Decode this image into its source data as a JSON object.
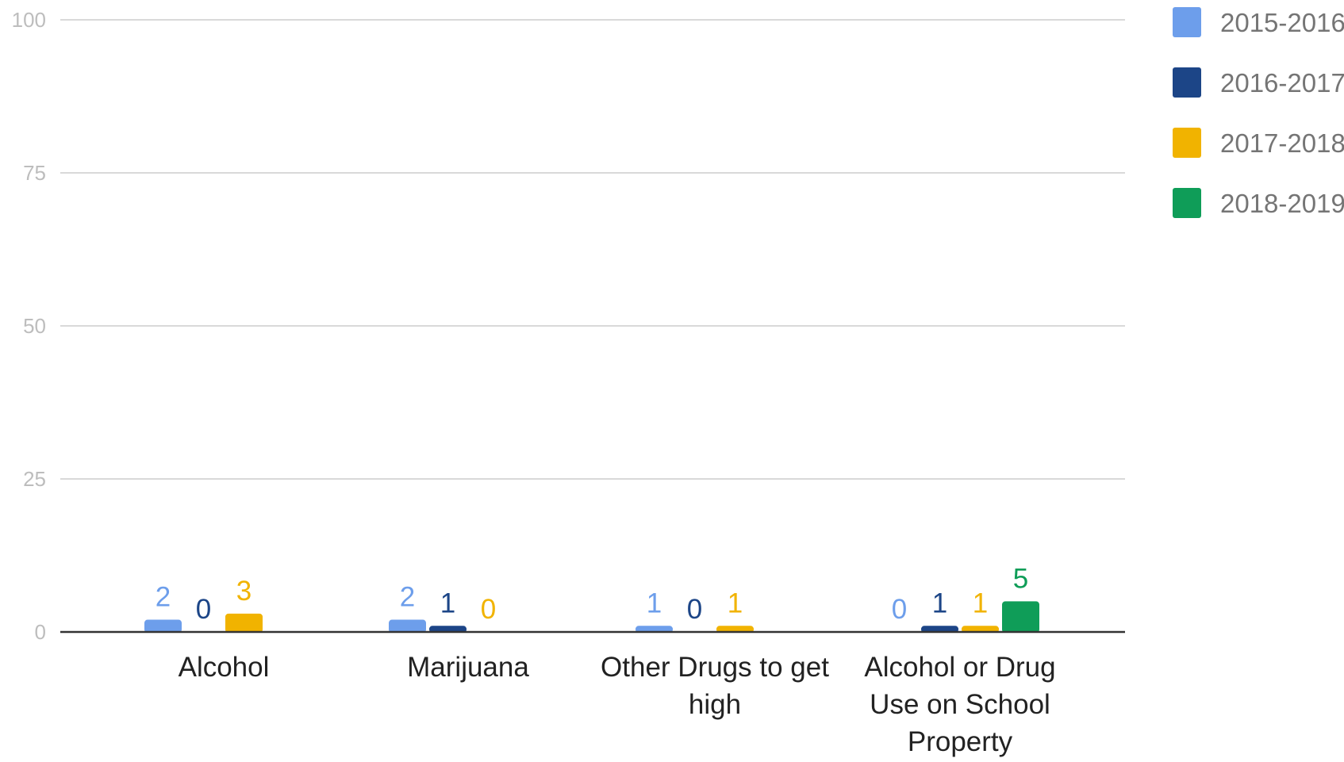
{
  "chart_data": {
    "type": "bar",
    "categories": [
      [
        "Alcohol"
      ],
      [
        "Marijuana"
      ],
      [
        "Other Drugs to get",
        "high"
      ],
      [
        "Alcohol or Drug",
        "Use on School",
        "Property"
      ]
    ],
    "series": [
      {
        "name": "2015-2016",
        "color": "#6d9eeb",
        "values": [
          2,
          2,
          1,
          0
        ]
      },
      {
        "name": "2016-2017",
        "color": "#1c4587",
        "values": [
          0,
          1,
          0,
          1
        ]
      },
      {
        "name": "2017-2018",
        "color": "#f1b300",
        "values": [
          3,
          0,
          1,
          1
        ]
      },
      {
        "name": "2018-2019",
        "color": "#0f9d58",
        "values": [
          null,
          null,
          null,
          5
        ]
      }
    ],
    "ylim": [
      0,
      100
    ],
    "yticks": [
      0,
      25,
      50,
      75,
      100
    ],
    "grid": true,
    "legend": "right",
    "title": "",
    "xlabel": "",
    "ylabel": ""
  }
}
